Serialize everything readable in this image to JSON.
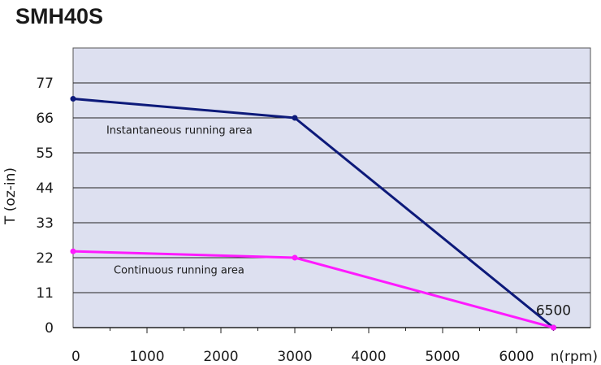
{
  "chart_data": {
    "type": "line",
    "title": "SMH40S",
    "xlabel": "n(rpm)",
    "ylabel": "T (oz-in)",
    "xlim": [
      0,
      7000
    ],
    "ylim": [
      0,
      88
    ],
    "x_ticks": [
      0,
      1000,
      2000,
      3000,
      4000,
      5000,
      6000
    ],
    "y_ticks": [
      0,
      11,
      22,
      33,
      44,
      55,
      66,
      77
    ],
    "grid": "horizontal",
    "colors": {
      "plot_background": "#dde0f0",
      "grid": "#222222",
      "instantaneous": "#0d1a7a",
      "continuous": "#ff1aff"
    },
    "series": [
      {
        "name": "",
        "x": [
          0,
          3000,
          6500
        ],
        "y": [
          72,
          66,
          0
        ],
        "color": "#0d1a7a"
      },
      {
        "name": "",
        "x": [
          0,
          3000,
          6500
        ],
        "y": [
          24,
          22,
          0
        ],
        "color": "#ff1aff"
      }
    ],
    "annotations": [
      {
        "text": "Instantaneous running area",
        "x": 450,
        "y": 61
      },
      {
        "text": "Continuous running area",
        "x": 550,
        "y": 17
      },
      {
        "text": "6500",
        "x": 6500,
        "y": 4
      }
    ]
  }
}
